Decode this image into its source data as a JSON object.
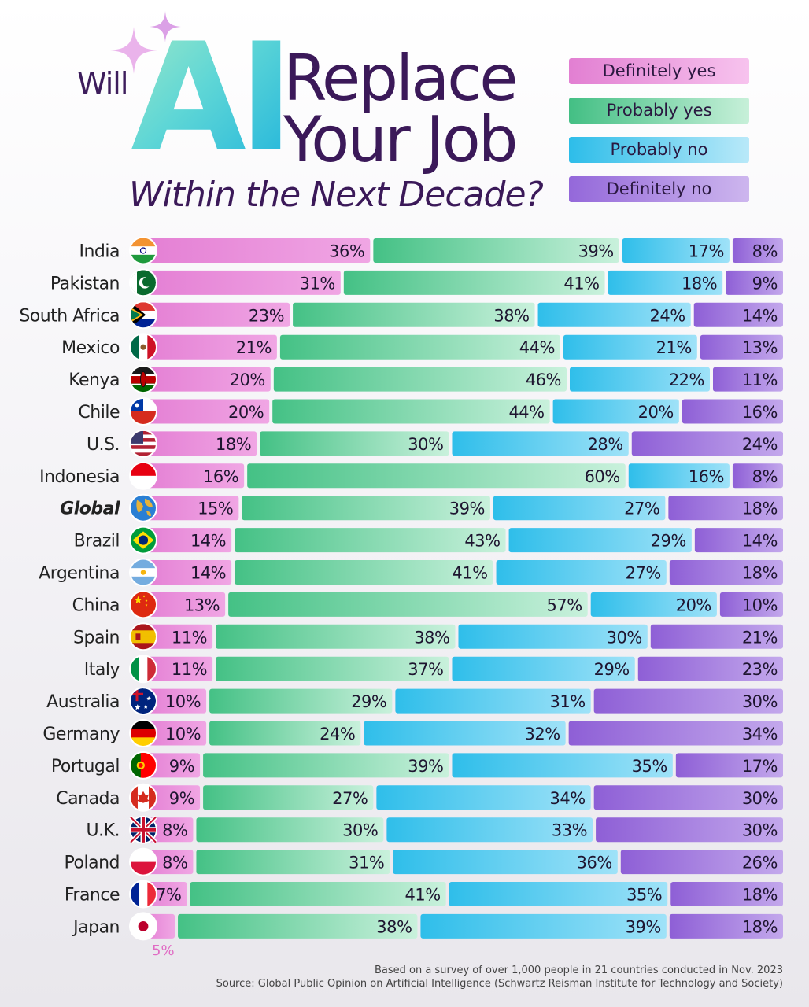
{
  "title": {
    "will": "Will",
    "ai": "AI",
    "line1": "Replace",
    "line2": "Your Job",
    "subtitle": "Within the Next Decade?"
  },
  "colors": {
    "definitely_yes": "#e787d6",
    "probably_yes": "#4cc48a",
    "probably_no": "#3cc3ec",
    "definitely_no": "#9d6fdd"
  },
  "chart_data": {
    "type": "bar",
    "orientation": "horizontal",
    "stacked": true,
    "value_format": "percent",
    "legend_position": "top-right",
    "categories": [
      "India",
      "Pakistan",
      "South Africa",
      "Mexico",
      "Kenya",
      "Chile",
      "U.S.",
      "Indonesia",
      "Global",
      "Brazil",
      "Argentina",
      "China",
      "Spain",
      "Italy",
      "Australia",
      "Germany",
      "Portugal",
      "Canada",
      "U.K.",
      "Poland",
      "France",
      "Japan"
    ],
    "flags": [
      "india",
      "pakistan",
      "south-africa",
      "mexico",
      "kenya",
      "chile",
      "usa",
      "indonesia",
      "globe",
      "brazil",
      "argentina",
      "china",
      "spain",
      "italy",
      "australia",
      "germany",
      "portugal",
      "canada",
      "uk",
      "poland",
      "france",
      "japan"
    ],
    "series": [
      {
        "name": "Definitely yes",
        "values": [
          36,
          31,
          23,
          21,
          20,
          20,
          18,
          16,
          15,
          14,
          14,
          13,
          11,
          11,
          10,
          10,
          9,
          9,
          8,
          8,
          7,
          5
        ]
      },
      {
        "name": "Probably yes",
        "values": [
          39,
          41,
          38,
          44,
          46,
          44,
          30,
          60,
          39,
          43,
          41,
          57,
          38,
          37,
          29,
          24,
          39,
          27,
          30,
          31,
          41,
          38
        ]
      },
      {
        "name": "Probably no",
        "values": [
          17,
          18,
          24,
          21,
          22,
          20,
          28,
          16,
          27,
          29,
          27,
          20,
          30,
          29,
          31,
          32,
          35,
          34,
          33,
          36,
          35,
          39
        ]
      },
      {
        "name": "Definitely no",
        "values": [
          8,
          9,
          14,
          13,
          11,
          16,
          24,
          8,
          18,
          14,
          18,
          10,
          21,
          23,
          30,
          34,
          17,
          30,
          30,
          26,
          18,
          18
        ]
      }
    ],
    "labels": [
      [
        "36%",
        "39%",
        "17%",
        "8%"
      ],
      [
        "31%",
        "41%",
        "18%",
        "9%"
      ],
      [
        "23%",
        "38%",
        "24%",
        "14%"
      ],
      [
        "21%",
        "44%",
        "21%",
        "13%"
      ],
      [
        "20%",
        "46%",
        "22%",
        "11%"
      ],
      [
        "20%",
        "44%",
        "20%",
        "16%"
      ],
      [
        "18%",
        "30%",
        "28%",
        "24%"
      ],
      [
        "16%",
        "60%",
        "16%",
        "8%"
      ],
      [
        "15%",
        "39%",
        "27%",
        "18%"
      ],
      [
        "14%",
        "43%",
        "29%",
        "14%"
      ],
      [
        "14%",
        "41%",
        "27%",
        "18%"
      ],
      [
        "13%",
        "57%",
        "20%",
        "10%"
      ],
      [
        "11%",
        "38%",
        "30%",
        "21%"
      ],
      [
        "11%",
        "37%",
        "29%",
        "23%"
      ],
      [
        "10%",
        "29%",
        "31%",
        "30%"
      ],
      [
        "10%",
        "24%",
        "32%",
        "34%"
      ],
      [
        "9%",
        "39%",
        "35%",
        "17%"
      ],
      [
        "9%",
        "27%",
        "34%",
        "30%"
      ],
      [
        "8%",
        "30%",
        "33%",
        "30%"
      ],
      [
        "8%",
        "31%",
        "36%",
        "26%"
      ],
      [
        "7%",
        "41%",
        "35%",
        "18%"
      ],
      [
        "",
        "38%",
        "39%",
        "18%"
      ]
    ],
    "japan_outside_label": "5%"
  },
  "footnotes": {
    "line1": "Based on a survey of over 1,000 people in 21 countries conducted in Nov. 2023",
    "line2": "Source: Global Public Opinion on Artificial Intelligence (Schwartz Reisman Institute for Technology and Society)"
  }
}
